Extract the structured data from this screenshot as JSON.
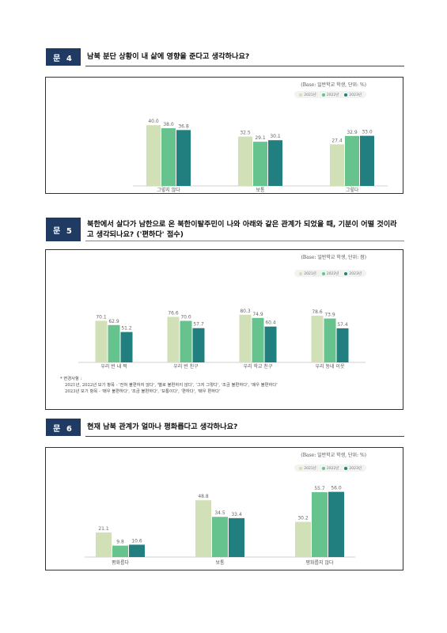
{
  "legend_labels": [
    "2021년",
    "2022년",
    "2023년"
  ],
  "colors": [
    "#d2e0b8",
    "#66c38e",
    "#217f80"
  ],
  "questions": [
    {
      "badge": "문 4",
      "title": "남북 분단 상황이 내 삶에 영향을 준다고 생각하나요?",
      "base": "(Base: 일반학교 학생, 단위: %)"
    },
    {
      "badge": "문 5",
      "title": "북한에서 살다가 남한으로 온 북한이탈주민이 나와 아래와 같은 관계가 되었을 때, 기분이 어떨 것이라고 생각되나요? ('편하다' 점수)",
      "base": "(Base: 일반학교 학생, 단위: 점)"
    },
    {
      "badge": "문 6",
      "title": "현재 남북 관계가 얼마나 평화롭다고 생각하나요?",
      "base": "(Base: 일반학교 학생, 단위: %)"
    }
  ],
  "note": {
    "head": "* 변경사항 :",
    "line1": "2021년, 2022년 보기 항목 - '전혀 불편하지 않다', '별로 불편하지 않다', '그저 그렇다', '조금 불편하다', '매우 불편하다'",
    "line2": "2023년 보기 항목 - '매우 불편하다', '조금 불편하다', '보통이다', '편하다', '매우 편하다'"
  },
  "chart_data": [
    {
      "type": "bar",
      "categories": [
        "그렇지 않다",
        "보통",
        "그렇다"
      ],
      "series": [
        {
          "name": "2021년",
          "values": [
            40.0,
            32.5,
            27.4
          ]
        },
        {
          "name": "2022년",
          "values": [
            38.0,
            29.1,
            32.9
          ]
        },
        {
          "name": "2023년",
          "values": [
            36.8,
            30.1,
            33.0
          ]
        }
      ],
      "labels": [
        [
          "40.0",
          "32.5",
          "27.4"
        ],
        [
          "38.0",
          "29.1",
          "32.9"
        ],
        [
          "36.8",
          "30.1",
          "33.0"
        ]
      ],
      "ylim": [
        0,
        50
      ],
      "legend": "top-right"
    },
    {
      "type": "bar",
      "categories": [
        "우리 반 내 짝",
        "우리 반 친구",
        "우리 학교 친구",
        "우리 동네 이웃"
      ],
      "series": [
        {
          "name": "2021년",
          "values": [
            70.1,
            76.6,
            80.3,
            78.6
          ]
        },
        {
          "name": "2022년",
          "values": [
            62.9,
            70.0,
            74.9,
            73.9
          ]
        },
        {
          "name": "2023년",
          "values": [
            51.2,
            57.7,
            60.4,
            57.4
          ]
        }
      ],
      "labels": [
        [
          "70.1",
          "76.6",
          "80.3",
          "78.6"
        ],
        [
          "62.9",
          "70.0",
          "74.9",
          "73.9"
        ],
        [
          "51.2",
          "57.7",
          "60.4",
          "57.4"
        ]
      ],
      "ylim": [
        0,
        100
      ],
      "legend": "top-right"
    },
    {
      "type": "bar",
      "categories": [
        "평화롭다",
        "보통",
        "평화롭지 않다"
      ],
      "series": [
        {
          "name": "2021년",
          "values": [
            21.1,
            48.8,
            30.2
          ]
        },
        {
          "name": "2022년",
          "values": [
            9.8,
            34.5,
            55.7
          ]
        },
        {
          "name": "2023년",
          "values": [
            10.6,
            33.4,
            56.0
          ]
        }
      ],
      "labels": [
        [
          "21.1",
          "48.8",
          "30.2"
        ],
        [
          "9.8",
          "34.5",
          "55.7"
        ],
        [
          "10.6",
          "33.4",
          "56.0"
        ]
      ],
      "ylim": [
        0,
        70
      ],
      "legend": "top-right"
    }
  ]
}
